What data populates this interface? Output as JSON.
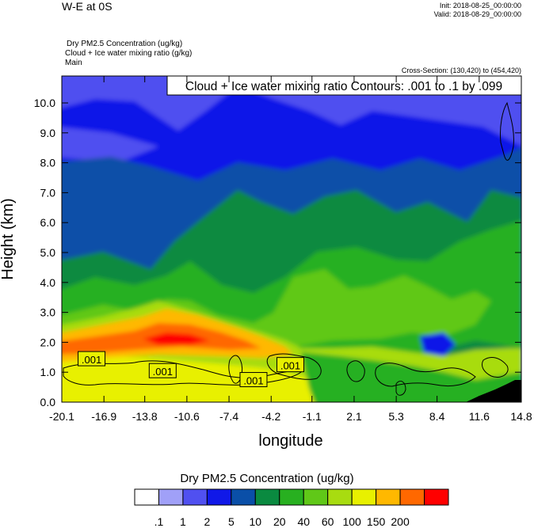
{
  "header": {
    "title": "W-E at 0S",
    "init": "Init: 2018-08-25_00:00:00",
    "valid": "Valid: 2018-08-29_00:00:00",
    "field_lines": [
      "Dry PM2.5 Concentration   (ug/kg)",
      "Cloud + Ice water mixing ratio   (g/kg)",
      "Main"
    ],
    "cross_section": "Cross-Section: (130,420) to (454,420)"
  },
  "chart_data": {
    "type": "heatmap",
    "title": "",
    "xlabel": "longitude",
    "ylabel": "Height (km)",
    "x_ticks": [
      "-20.1",
      "-16.9",
      "-13.8",
      "-10.6",
      "-7.4",
      "-4.2",
      "-1.1",
      "2.1",
      "5.3",
      "8.4",
      "11.6",
      "14.8"
    ],
    "y_ticks": [
      "0.0",
      "1.0",
      "2.0",
      "3.0",
      "4.0",
      "5.0",
      "6.0",
      "7.0",
      "8.0",
      "9.0",
      "10.0"
    ],
    "xlim": [
      -20.1,
      14.8
    ],
    "ylim": [
      0.0,
      10.9
    ],
    "contour_info": "Cloud + Ice water mixing ratio Contours: .001 to .1 by .099",
    "contour_labels": [
      ".001",
      ".001",
      ".001",
      ".001"
    ],
    "contour_label_positions": [
      {
        "lon": -17.9,
        "h": 1.4
      },
      {
        "lon": -12.5,
        "h": 1.0
      },
      {
        "lon": -5.6,
        "h": 0.7
      },
      {
        "lon": -2.8,
        "h": 1.2
      }
    ],
    "colorbar": {
      "title": "Dry PM2.5 Concentration  (ug/kg)",
      "labels": [
        ".1",
        "1",
        "2",
        "5",
        "10",
        "20",
        "40",
        "60",
        "100",
        "150",
        "200"
      ],
      "colors": [
        "#ffffff",
        "#a0a0f8",
        "#5050f0",
        "#1018e8",
        "#0a4fa8",
        "#0a8a40",
        "#28b020",
        "#60c818",
        "#a8dc10",
        "#e8f000",
        "#ffb800",
        "#ff6800",
        "#ff0000"
      ]
    }
  }
}
